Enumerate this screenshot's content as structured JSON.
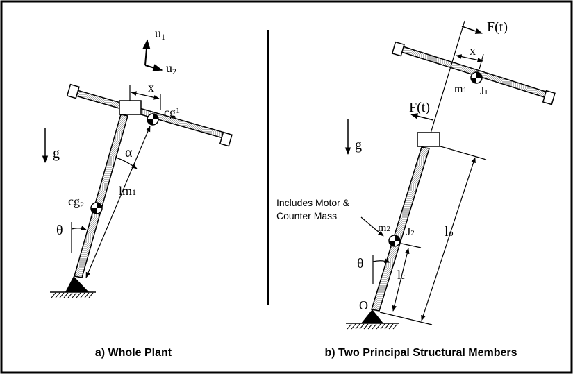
{
  "left_panel": {
    "caption": "a) Whole Plant",
    "u1_label": "u",
    "u1_sub": "1",
    "u2_label": "u",
    "u2_sub": "2",
    "g_label": "g",
    "x_label": "x",
    "cg1_label": "cg",
    "cg1_sub": "1",
    "cg2_label": "cg",
    "cg2_sub": "2",
    "alpha_label": "α",
    "lm1_label": "lm",
    "lm1_sub": "1",
    "theta_label": "θ"
  },
  "right_panel": {
    "caption": "b) Two Principal Structural Members",
    "force_top_label": "F(t)",
    "force_mid_label": "F(t)",
    "x_label": "x",
    "m1_label": "m",
    "m1_sub": "1",
    "J1_label": "J",
    "J1_sub": "1",
    "g_label": "g",
    "note_line1": "Includes Motor &",
    "note_line2": "Counter Mass",
    "m2_label": "m",
    "m2_sub": "2",
    "J2_label": "J",
    "J2_sub": "2",
    "lo_label": "l",
    "lo_sub": "o",
    "lc_label": "l",
    "lc_sub": "c",
    "theta_label": "θ",
    "origin_label": "O"
  }
}
